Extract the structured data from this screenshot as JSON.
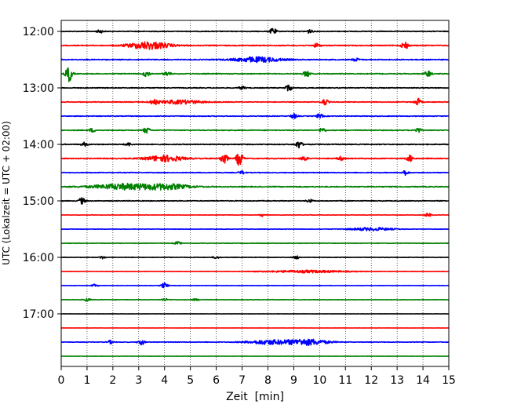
{
  "chart_data": {
    "type": "line",
    "title": "",
    "xlabel": "Zeit  [min]",
    "ylabel": "UTC (Lokalzeit = UTC + 02:00)",
    "xlim": [
      0,
      15
    ],
    "x_ticks": [
      0,
      1,
      2,
      3,
      4,
      5,
      6,
      7,
      8,
      9,
      10,
      11,
      12,
      13,
      14,
      15
    ],
    "y_ticks": [
      "12:00",
      "13:00",
      "14:00",
      "15:00",
      "16:00",
      "17:00"
    ],
    "grid": "vertical dotted",
    "line_colors": [
      "#000000",
      "#ff0000",
      "#0000ff",
      "#008000"
    ],
    "series": [
      {
        "start": "12:00",
        "color": "#000000",
        "noise": 0.45,
        "events": [
          {
            "t": 1.5,
            "a": 0.5
          },
          {
            "t": 8.2,
            "a": 1.0
          },
          {
            "t": 9.6,
            "a": 0.6
          }
        ]
      },
      {
        "start": "12:15",
        "color": "#ff0000",
        "noise": 0.55,
        "events": [
          {
            "t": 3.4,
            "a": 1.2,
            "w": 0.8
          },
          {
            "t": 9.9,
            "a": 0.7
          },
          {
            "t": 13.3,
            "a": 1.3
          }
        ]
      },
      {
        "start": "12:30",
        "color": "#0000ff",
        "noise": 0.55,
        "events": [
          {
            "t": 7.6,
            "a": 0.8,
            "w": 0.9
          },
          {
            "t": 11.4,
            "a": 0.5
          }
        ]
      },
      {
        "start": "12:45",
        "color": "#008000",
        "noise": 0.5,
        "events": [
          {
            "t": 0.3,
            "a": 2.6
          },
          {
            "t": 3.3,
            "a": 1.0
          },
          {
            "t": 4.1,
            "a": 0.8
          },
          {
            "t": 9.5,
            "a": 1.0
          },
          {
            "t": 14.2,
            "a": 1.0
          }
        ]
      },
      {
        "start": "13:00",
        "color": "#000000",
        "noise": 0.45,
        "events": [
          {
            "t": 8.8,
            "a": 1.0
          },
          {
            "t": 7.0,
            "a": 0.5
          }
        ]
      },
      {
        "start": "13:15",
        "color": "#ff0000",
        "noise": 0.45,
        "events": [
          {
            "t": 3.6,
            "a": 0.9
          },
          {
            "t": 4.6,
            "a": 0.6,
            "w": 0.9
          },
          {
            "t": 10.2,
            "a": 1.0
          },
          {
            "t": 13.8,
            "a": 1.1
          }
        ]
      },
      {
        "start": "13:30",
        "color": "#0000ff",
        "noise": 0.45,
        "events": [
          {
            "t": 9.0,
            "a": 0.8
          },
          {
            "t": 10.0,
            "a": 0.7
          }
        ]
      },
      {
        "start": "13:45",
        "color": "#008000",
        "noise": 0.45,
        "events": [
          {
            "t": 1.2,
            "a": 0.6
          },
          {
            "t": 3.3,
            "a": 1.0
          },
          {
            "t": 10.1,
            "a": 0.8
          },
          {
            "t": 13.8,
            "a": 0.8
          }
        ]
      },
      {
        "start": "14:00",
        "color": "#000000",
        "noise": 0.5,
        "events": [
          {
            "t": 0.9,
            "a": 0.6
          },
          {
            "t": 2.6,
            "a": 0.5
          },
          {
            "t": 9.2,
            "a": 1.2
          }
        ]
      },
      {
        "start": "14:15",
        "color": "#ff0000",
        "noise": 0.55,
        "events": [
          {
            "t": 4.0,
            "a": 1.0,
            "w": 0.7
          },
          {
            "t": 6.3,
            "a": 2.1
          },
          {
            "t": 6.9,
            "a": 2.4
          },
          {
            "t": 9.4,
            "a": 0.7
          },
          {
            "t": 10.8,
            "a": 0.6
          },
          {
            "t": 13.5,
            "a": 1.0
          }
        ]
      },
      {
        "start": "14:30",
        "color": "#0000ff",
        "noise": 0.45,
        "events": [
          {
            "t": 7.0,
            "a": 0.5
          },
          {
            "t": 13.3,
            "a": 0.8
          }
        ]
      },
      {
        "start": "14:45",
        "color": "#008000",
        "noise": 0.55,
        "events": [
          {
            "t": 2.4,
            "a": 0.9,
            "w": 1.2
          },
          {
            "t": 4.1,
            "a": 0.8,
            "w": 0.9
          }
        ]
      },
      {
        "start": "15:00",
        "color": "#000000",
        "noise": 0.45,
        "events": [
          {
            "t": 0.8,
            "a": 1.0
          },
          {
            "t": 9.6,
            "a": 0.5
          }
        ]
      },
      {
        "start": "15:15",
        "color": "#ff0000",
        "noise": 0.25,
        "events": [
          {
            "t": 7.8,
            "a": 0.4
          },
          {
            "t": 14.2,
            "a": 0.6
          }
        ]
      },
      {
        "start": "15:30",
        "color": "#0000ff",
        "noise": 0.25,
        "events": [
          {
            "t": 12.0,
            "a": 0.5,
            "w": 0.8
          }
        ]
      },
      {
        "start": "15:45",
        "color": "#008000",
        "noise": 0.3,
        "events": [
          {
            "t": 4.5,
            "a": 0.5
          }
        ]
      },
      {
        "start": "16:00",
        "color": "#000000",
        "noise": 0.3,
        "events": [
          {
            "t": 1.6,
            "a": 0.4
          },
          {
            "t": 6.0,
            "a": 0.4
          },
          {
            "t": 9.1,
            "a": 0.5
          }
        ]
      },
      {
        "start": "16:15",
        "color": "#ff0000",
        "noise": 0.25,
        "events": [
          {
            "t": 9.5,
            "a": 0.4,
            "w": 1.5
          }
        ]
      },
      {
        "start": "16:30",
        "color": "#0000ff",
        "noise": 0.25,
        "events": [
          {
            "t": 1.3,
            "a": 0.4
          },
          {
            "t": 4.0,
            "a": 0.9
          }
        ]
      },
      {
        "start": "16:45",
        "color": "#008000",
        "noise": 0.3,
        "events": [
          {
            "t": 1.0,
            "a": 0.5
          },
          {
            "t": 4.0,
            "a": 0.4
          },
          {
            "t": 5.2,
            "a": 0.3
          }
        ]
      },
      {
        "start": "17:00",
        "color": "#000000",
        "noise": 0.12,
        "events": []
      },
      {
        "start": "17:15",
        "color": "#ff0000",
        "noise": 0.12,
        "events": []
      },
      {
        "start": "17:30",
        "color": "#0000ff",
        "noise": 0.35,
        "events": [
          {
            "t": 1.9,
            "a": 0.5
          },
          {
            "t": 3.1,
            "a": 0.9
          },
          {
            "t": 8.0,
            "a": 0.7,
            "w": 0.8
          },
          {
            "t": 9.5,
            "a": 1.0,
            "w": 0.8
          }
        ]
      },
      {
        "start": "17:45",
        "color": "#008000",
        "noise": 0.15,
        "events": []
      }
    ]
  }
}
